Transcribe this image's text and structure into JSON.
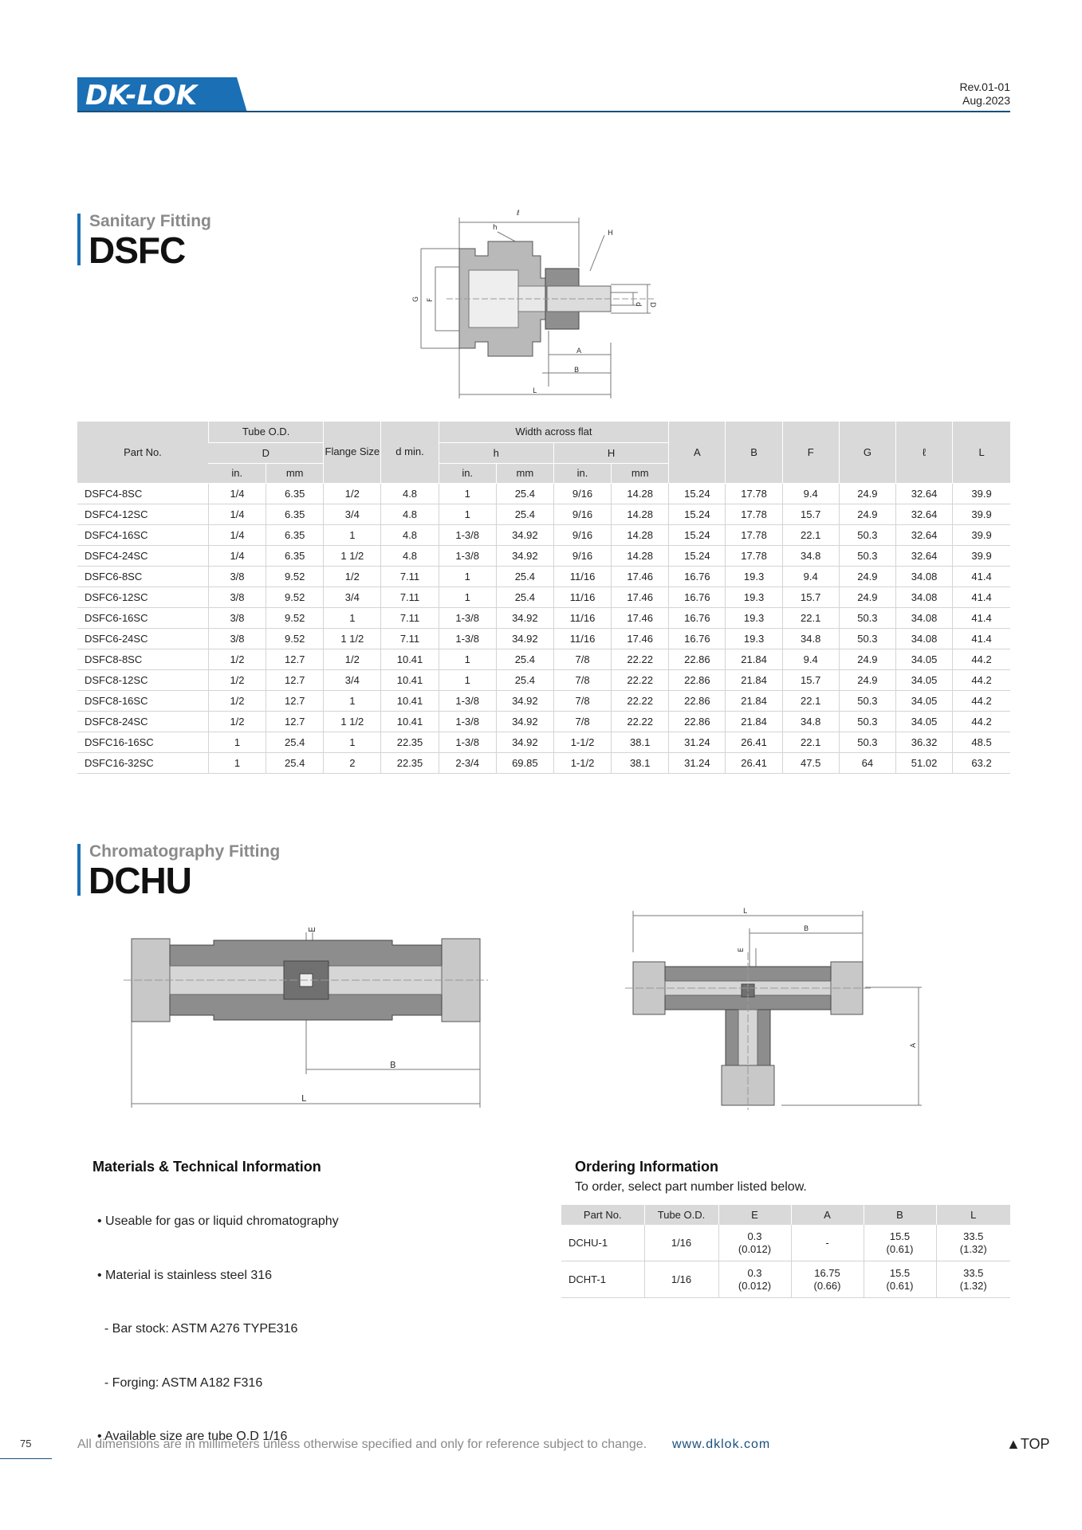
{
  "header": {
    "logo_text": "DK-LOK",
    "rev": "Rev.01-01",
    "date": "Aug.2023"
  },
  "dsfc": {
    "subtitle": "Sanitary Fitting",
    "title": "DSFC",
    "diagram_labels": [
      "ℓ",
      "h",
      "H",
      "G",
      "F",
      "d",
      "D",
      "A",
      "B",
      "L"
    ],
    "table": {
      "headers": {
        "part_no": "Part No.",
        "tube_od": "Tube O.D.",
        "D": "D",
        "in": "in.",
        "mm": "mm",
        "flange": "Flange Size",
        "d_min": "d min.",
        "width_flat": "Width across flat",
        "h": "h",
        "H": "H",
        "A": "A",
        "B": "B",
        "F": "F",
        "G": "G",
        "l": "ℓ",
        "L": "L"
      },
      "rows": [
        [
          "DSFC4-8SC",
          "1/4",
          "6.35",
          "1/2",
          "4.8",
          "1",
          "25.4",
          "9/16",
          "14.28",
          "15.24",
          "17.78",
          "9.4",
          "24.9",
          "32.64",
          "39.9"
        ],
        [
          "DSFC4-12SC",
          "1/4",
          "6.35",
          "3/4",
          "4.8",
          "1",
          "25.4",
          "9/16",
          "14.28",
          "15.24",
          "17.78",
          "15.7",
          "24.9",
          "32.64",
          "39.9"
        ],
        [
          "DSFC4-16SC",
          "1/4",
          "6.35",
          "1",
          "4.8",
          "1-3/8",
          "34.92",
          "9/16",
          "14.28",
          "15.24",
          "17.78",
          "22.1",
          "50.3",
          "32.64",
          "39.9"
        ],
        [
          "DSFC4-24SC",
          "1/4",
          "6.35",
          "1 1/2",
          "4.8",
          "1-3/8",
          "34.92",
          "9/16",
          "14.28",
          "15.24",
          "17.78",
          "34.8",
          "50.3",
          "32.64",
          "39.9"
        ],
        [
          "DSFC6-8SC",
          "3/8",
          "9.52",
          "1/2",
          "7.11",
          "1",
          "25.4",
          "11/16",
          "17.46",
          "16.76",
          "19.3",
          "9.4",
          "24.9",
          "34.08",
          "41.4"
        ],
        [
          "DSFC6-12SC",
          "3/8",
          "9.52",
          "3/4",
          "7.11",
          "1",
          "25.4",
          "11/16",
          "17.46",
          "16.76",
          "19.3",
          "15.7",
          "24.9",
          "34.08",
          "41.4"
        ],
        [
          "DSFC6-16SC",
          "3/8",
          "9.52",
          "1",
          "7.11",
          "1-3/8",
          "34.92",
          "11/16",
          "17.46",
          "16.76",
          "19.3",
          "22.1",
          "50.3",
          "34.08",
          "41.4"
        ],
        [
          "DSFC6-24SC",
          "3/8",
          "9.52",
          "1 1/2",
          "7.11",
          "1-3/8",
          "34.92",
          "11/16",
          "17.46",
          "16.76",
          "19.3",
          "34.8",
          "50.3",
          "34.08",
          "41.4"
        ],
        [
          "DSFC8-8SC",
          "1/2",
          "12.7",
          "1/2",
          "10.41",
          "1",
          "25.4",
          "7/8",
          "22.22",
          "22.86",
          "21.84",
          "9.4",
          "24.9",
          "34.05",
          "44.2"
        ],
        [
          "DSFC8-12SC",
          "1/2",
          "12.7",
          "3/4",
          "10.41",
          "1",
          "25.4",
          "7/8",
          "22.22",
          "22.86",
          "21.84",
          "15.7",
          "24.9",
          "34.05",
          "44.2"
        ],
        [
          "DSFC8-16SC",
          "1/2",
          "12.7",
          "1",
          "10.41",
          "1-3/8",
          "34.92",
          "7/8",
          "22.22",
          "22.86",
          "21.84",
          "22.1",
          "50.3",
          "34.05",
          "44.2"
        ],
        [
          "DSFC8-24SC",
          "1/2",
          "12.7",
          "1 1/2",
          "10.41",
          "1-3/8",
          "34.92",
          "7/8",
          "22.22",
          "22.86",
          "21.84",
          "34.8",
          "50.3",
          "34.05",
          "44.2"
        ],
        [
          "DSFC16-16SC",
          "1",
          "25.4",
          "1",
          "22.35",
          "1-3/8",
          "34.92",
          "1-1/2",
          "38.1",
          "31.24",
          "26.41",
          "22.1",
          "50.3",
          "36.32",
          "48.5"
        ],
        [
          "DSFC16-32SC",
          "1",
          "25.4",
          "2",
          "22.35",
          "2-3/4",
          "69.85",
          "1-1/2",
          "38.1",
          "31.24",
          "26.41",
          "47.5",
          "64",
          "51.02",
          "63.2"
        ]
      ]
    }
  },
  "dchu": {
    "subtitle": "Chromatography Fitting",
    "title": "DCHU",
    "diagram1_labels": [
      "E",
      "B",
      "L"
    ],
    "diagram2_labels": [
      "L",
      "B",
      "E",
      "A"
    ]
  },
  "materials": {
    "title": "Materials & Technical Information",
    "items": [
      "• Useable for gas or liquid chromatography",
      "• Material is stainless steel 316",
      "  - Bar stock: ASTM A276 TYPE316",
      "  - Forging: ASTM A182 F316",
      "• Available size are tube O.D 1/16"
    ]
  },
  "ordering": {
    "title": "Ordering Information",
    "subtitle": "To order, select part number listed below.",
    "headers": [
      "Part No.",
      "Tube O.D.",
      "E",
      "A",
      "B",
      "L"
    ],
    "rows": [
      [
        "DCHU-1",
        "1/16",
        "0.3",
        "(0.012)",
        "-",
        "",
        "15.5",
        "(0.61)",
        "33.5",
        "(1.32)"
      ],
      [
        "DCHT-1",
        "1/16",
        "0.3",
        "(0.012)",
        "16.75",
        "(0.66)",
        "15.5",
        "(0.61)",
        "33.5",
        "(1.32)"
      ]
    ]
  },
  "footer": {
    "page": "75",
    "note": "All dimensions are in millimeters unless otherwise specified and only for reference subject to change.",
    "url": "www.dklok.com",
    "top": "▲TOP"
  }
}
